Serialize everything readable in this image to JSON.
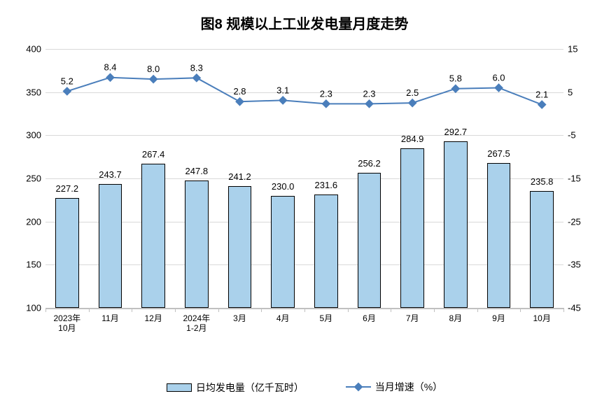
{
  "title": "图8 规模以上工业发电量月度走势",
  "chart": {
    "type": "bar+line",
    "background_color": "#ffffff",
    "grid_color": "#d9d9d9",
    "axis_color": "#c0c0c0",
    "text_color": "#000000",
    "title_fontsize": 20,
    "label_fontsize": 13,
    "categories": [
      "2023年\n10月",
      "11月",
      "12月",
      "2024年\n1-2月",
      "3月",
      "4月",
      "5月",
      "6月",
      "7月",
      "8月",
      "9月",
      "10月"
    ],
    "y_left": {
      "min": 100,
      "max": 400,
      "step": 50
    },
    "y_right": {
      "min": -45,
      "max": 15,
      "step": 10
    },
    "bars": {
      "name": "日均发电量（亿千瓦时）",
      "values": [
        227.2,
        243.7,
        267.4,
        247.8,
        241.2,
        230.0,
        231.6,
        256.2,
        284.9,
        292.7,
        267.5,
        235.8
      ],
      "color": "#aad1eb",
      "border_color": "#000000",
      "bar_width_ratio": 0.55
    },
    "line": {
      "name": "当月增速（%）",
      "values": [
        5.2,
        8.4,
        8.0,
        8.3,
        2.8,
        3.1,
        2.3,
        2.3,
        2.5,
        5.8,
        6.0,
        2.1
      ],
      "color": "#4a7ebb",
      "line_width": 2,
      "marker": "diamond",
      "marker_size": 9
    }
  },
  "legend": {
    "bar_label": "日均发电量（亿千瓦时）",
    "line_label": "当月增速（%）"
  }
}
